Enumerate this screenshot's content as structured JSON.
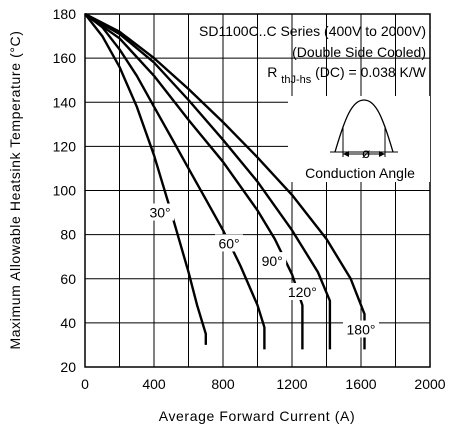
{
  "chart_data": {
    "type": "line",
    "title": "",
    "xlabel": "Average Forward Current (A)",
    "ylabel": "Maximum Allowable Heatsink Temperature (°C)",
    "xlim": [
      0,
      2000
    ],
    "ylim": [
      20,
      180
    ],
    "xticks": [
      "0",
      "400",
      "800",
      "1200",
      "1600",
      "2000"
    ],
    "yticks": [
      "20",
      "40",
      "60",
      "80",
      "100",
      "120",
      "140",
      "160",
      "180"
    ],
    "grid": true,
    "annotations": {
      "series_line": "SD1100C..C Series (400V to 2000V)",
      "cooling_line": "(Double Side Cooled)",
      "rth_prefix": "R",
      "rth_subscript": "thJ-hs",
      "rth_suffix": "(DC) = 0.038 K/W",
      "inset_label": "Conduction Angle",
      "inset_symbol": "ø"
    },
    "series": [
      {
        "name": "30°",
        "x": [
          0,
          100,
          200,
          300,
          400,
          500,
          600,
          650,
          700,
          700
        ],
        "y": [
          180,
          170,
          156,
          138,
          116,
          90,
          63,
          48,
          35,
          30
        ]
      },
      {
        "name": "60°",
        "x": [
          0,
          100,
          200,
          300,
          400,
          500,
          600,
          700,
          800,
          900,
          1000,
          1040,
          1040
        ],
        "y": [
          180,
          174,
          164,
          152,
          138,
          124,
          110,
          96,
          82,
          66,
          48,
          38,
          28
        ]
      },
      {
        "name": "90°",
        "x": [
          0,
          200,
          400,
          600,
          800,
          1000,
          1100,
          1200,
          1260,
          1260
        ],
        "y": [
          180,
          169,
          152,
          132,
          113,
          91,
          78,
          62,
          48,
          28
        ]
      },
      {
        "name": "120°",
        "x": [
          0,
          200,
          400,
          600,
          800,
          1000,
          1200,
          1350,
          1420,
          1420
        ],
        "y": [
          180,
          171,
          158,
          141,
          123,
          104,
          82,
          63,
          50,
          28
        ]
      },
      {
        "name": "180°",
        "x": [
          0,
          200,
          400,
          600,
          800,
          1000,
          1200,
          1400,
          1540,
          1620,
          1620
        ],
        "y": [
          180,
          172,
          160,
          146,
          131,
          115,
          98,
          78,
          60,
          44,
          28
        ]
      }
    ],
    "curve_labels": [
      {
        "text": "30°",
        "x": 435,
        "y": 90
      },
      {
        "text": "60°",
        "x": 835,
        "y": 76
      },
      {
        "text": "90°",
        "x": 1085,
        "y": 68
      },
      {
        "text": "120°",
        "x": 1260,
        "y": 54
      },
      {
        "text": "180°",
        "x": 1600,
        "y": 37
      }
    ]
  }
}
